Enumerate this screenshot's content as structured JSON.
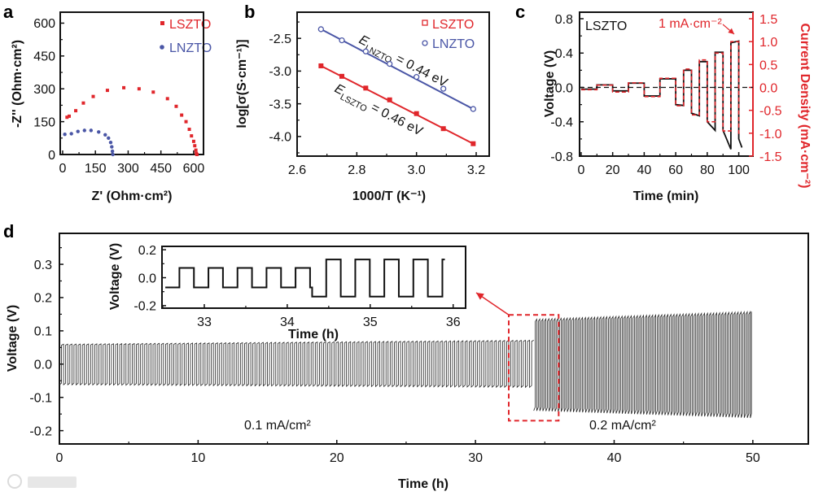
{
  "colors": {
    "lszto": "#e0262b",
    "lnzto": "#4a56a6",
    "black": "#111111",
    "annotation_red": "#e0262b"
  },
  "watermark": "大数跨境",
  "chart_data": [
    {
      "panel": "a",
      "type": "scatter",
      "xlabel": "Z' (Ohm·cm²)",
      "ylabel": "-Z'' (Ohm·cm²)",
      "xlim": [
        -11,
        645
      ],
      "ylim": [
        0,
        650
      ],
      "xticks": [
        0,
        150,
        300,
        450,
        600
      ],
      "yticks": [
        0,
        150,
        300,
        450,
        600
      ],
      "legend_position": "top-right",
      "series": [
        {
          "name": "LSZTO",
          "marker": "square",
          "color": "#e0262b",
          "x": [
            20,
            30,
            60,
            95,
            140,
            205,
            280,
            350,
            415,
            480,
            520,
            545,
            565,
            580,
            590,
            600,
            605,
            610,
            612,
            615
          ],
          "y": [
            170,
            175,
            200,
            235,
            265,
            293,
            305,
            300,
            285,
            255,
            220,
            180,
            150,
            115,
            85,
            60,
            40,
            20,
            5,
            0
          ]
        },
        {
          "name": "LNZTO",
          "marker": "circle",
          "color": "#4a56a6",
          "x": [
            10,
            40,
            70,
            100,
            130,
            165,
            195,
            210,
            220,
            225,
            228,
            230
          ],
          "y": [
            92,
            95,
            105,
            110,
            110,
            103,
            90,
            75,
            55,
            35,
            15,
            0
          ]
        }
      ]
    },
    {
      "panel": "b",
      "type": "line",
      "xlabel": "1000/T (K⁻¹)",
      "ylabel": "log[σ(S·cm⁻¹)]",
      "xlim": [
        2.6,
        3.2436
      ],
      "ylim": [
        -4.3,
        -2.1
      ],
      "xticks": [
        "2.6",
        "2.8",
        "3.0",
        "3.2"
      ],
      "yticks": [
        "-2.5",
        "-3.0",
        "-3.5",
        "-4.0"
      ],
      "legend_position": "top-right",
      "series": [
        {
          "name": "LSZTO",
          "marker": "square-open",
          "color": "#e0262b",
          "x": [
            2.68,
            2.75,
            2.83,
            2.91,
            3.0,
            3.09,
            3.19
          ],
          "y": [
            -2.92,
            -3.08,
            -3.26,
            -3.44,
            -3.65,
            -3.88,
            -4.11
          ]
        },
        {
          "name": "LNZTO",
          "marker": "circle-open",
          "color": "#4a56a6",
          "x": [
            2.68,
            2.75,
            2.83,
            2.91,
            3.0,
            3.09,
            3.19
          ],
          "y": [
            -2.36,
            -2.53,
            -2.7,
            -2.89,
            -3.09,
            -3.27,
            -3.58
          ]
        }
      ],
      "annotations": [
        {
          "symbol": "E",
          "sub": "LNZTO",
          "rest": " = 0.44 eV"
        },
        {
          "symbol": "E",
          "sub": "LSZTO",
          "rest": " = 0.46 eV"
        }
      ]
    },
    {
      "panel": "c",
      "type": "line",
      "xlabel": "Time (min)",
      "ylabel": "Voltage (V)",
      "ylabel_right": "Current Density (mA·cm⁻²)",
      "xlim": [
        -1,
        109
      ],
      "ylim": [
        -0.8,
        0.876
      ],
      "ylim_right_per_left": 1.875,
      "xticks": [
        "0",
        "20",
        "40",
        "60",
        "80",
        "100"
      ],
      "yticks": [
        "0.8",
        "0.4",
        "0.0",
        "-0.4",
        "-0.8"
      ],
      "yticks_right": [
        "1.5",
        "1.0",
        "0.5",
        "0.0",
        "-0.5",
        "-1.0",
        "-1.5"
      ],
      "sample_label": "LSZTO",
      "annotation": "1 mA·cm⁻²",
      "voltage_segments": [
        [
          0,
          10,
          -0.02,
          -0.02
        ],
        [
          10,
          20,
          0.03,
          0.03
        ],
        [
          20,
          30,
          -0.04,
          -0.04
        ],
        [
          30,
          40,
          0.05,
          0.05
        ],
        [
          40,
          50,
          -0.1,
          -0.1
        ],
        [
          50,
          60,
          0.1,
          0.1
        ],
        [
          60,
          65,
          -0.2,
          -0.21
        ],
        [
          65,
          70,
          0.2,
          0.2
        ],
        [
          70,
          75,
          -0.3,
          -0.33
        ],
        [
          75,
          80,
          0.3,
          0.3
        ],
        [
          80,
          85,
          -0.4,
          -0.5
        ],
        [
          85,
          90,
          0.41,
          0.41
        ],
        [
          90,
          95,
          -0.5,
          -0.72
        ],
        [
          95,
          100,
          0.52,
          0.54
        ],
        [
          100,
          102,
          -0.6,
          -0.7
        ]
      ],
      "current_segments": [
        [
          0,
          10,
          -0.05
        ],
        [
          10,
          20,
          0.05
        ],
        [
          20,
          30,
          -0.1
        ],
        [
          30,
          40,
          0.1
        ],
        [
          40,
          50,
          -0.2
        ],
        [
          50,
          60,
          0.2
        ],
        [
          60,
          65,
          -0.4
        ],
        [
          65,
          70,
          0.4
        ],
        [
          70,
          75,
          -0.6
        ],
        [
          75,
          80,
          0.6
        ],
        [
          80,
          85,
          -0.75
        ],
        [
          85,
          90,
          0.75
        ],
        [
          90,
          95,
          -0.95
        ],
        [
          95,
          100,
          1.0
        ],
        [
          100,
          102,
          -1.0
        ]
      ]
    },
    {
      "panel": "d",
      "type": "line",
      "xlabel": "Time (h)",
      "ylabel": "Voltage (V)",
      "xlim": [
        0,
        54
      ],
      "ylim": [
        -0.24,
        0.393
      ],
      "xticks": [
        "0",
        "10",
        "20",
        "30",
        "40",
        "50"
      ],
      "yticks": [
        "0.3",
        "0.2",
        "0.1",
        "0.0",
        "-0.1",
        "-0.2"
      ],
      "phases": [
        {
          "label": "0.1 mA/cm²",
          "start": 0,
          "end": 34.2,
          "period": 0.3,
          "high": [
            0.06,
            0.072
          ],
          "low": [
            -0.062,
            -0.07
          ]
        },
        {
          "label": "0.2 mA/cm²",
          "start": 34.2,
          "end": 49.9,
          "period": 0.22,
          "high": [
            0.135,
            0.158
          ],
          "low": [
            -0.14,
            -0.162
          ]
        }
      ],
      "highlight_box": {
        "x": [
          32.4,
          36.0
        ],
        "y": [
          -0.17,
          0.148
        ]
      },
      "inset": {
        "xlabel": "Time (h)",
        "ylabel": "Voltage (V)",
        "xlim": [
          32.49,
          36.15
        ],
        "ylim": [
          -0.218,
          0.224
        ],
        "xticks": [
          "33",
          "34",
          "35",
          "36"
        ],
        "yticks": [
          "0.2",
          "0.0",
          "-0.2"
        ],
        "phases": [
          {
            "start": 32.53,
            "first_up": 32.7,
            "end": 34.3,
            "period": 0.35,
            "high": 0.07,
            "low": -0.07
          },
          {
            "start": 34.3,
            "first_up": 34.47,
            "end": 35.9,
            "period": 0.35,
            "high": 0.13,
            "low": -0.135
          }
        ]
      }
    }
  ],
  "panel_labels": [
    "a",
    "b",
    "c",
    "d"
  ]
}
